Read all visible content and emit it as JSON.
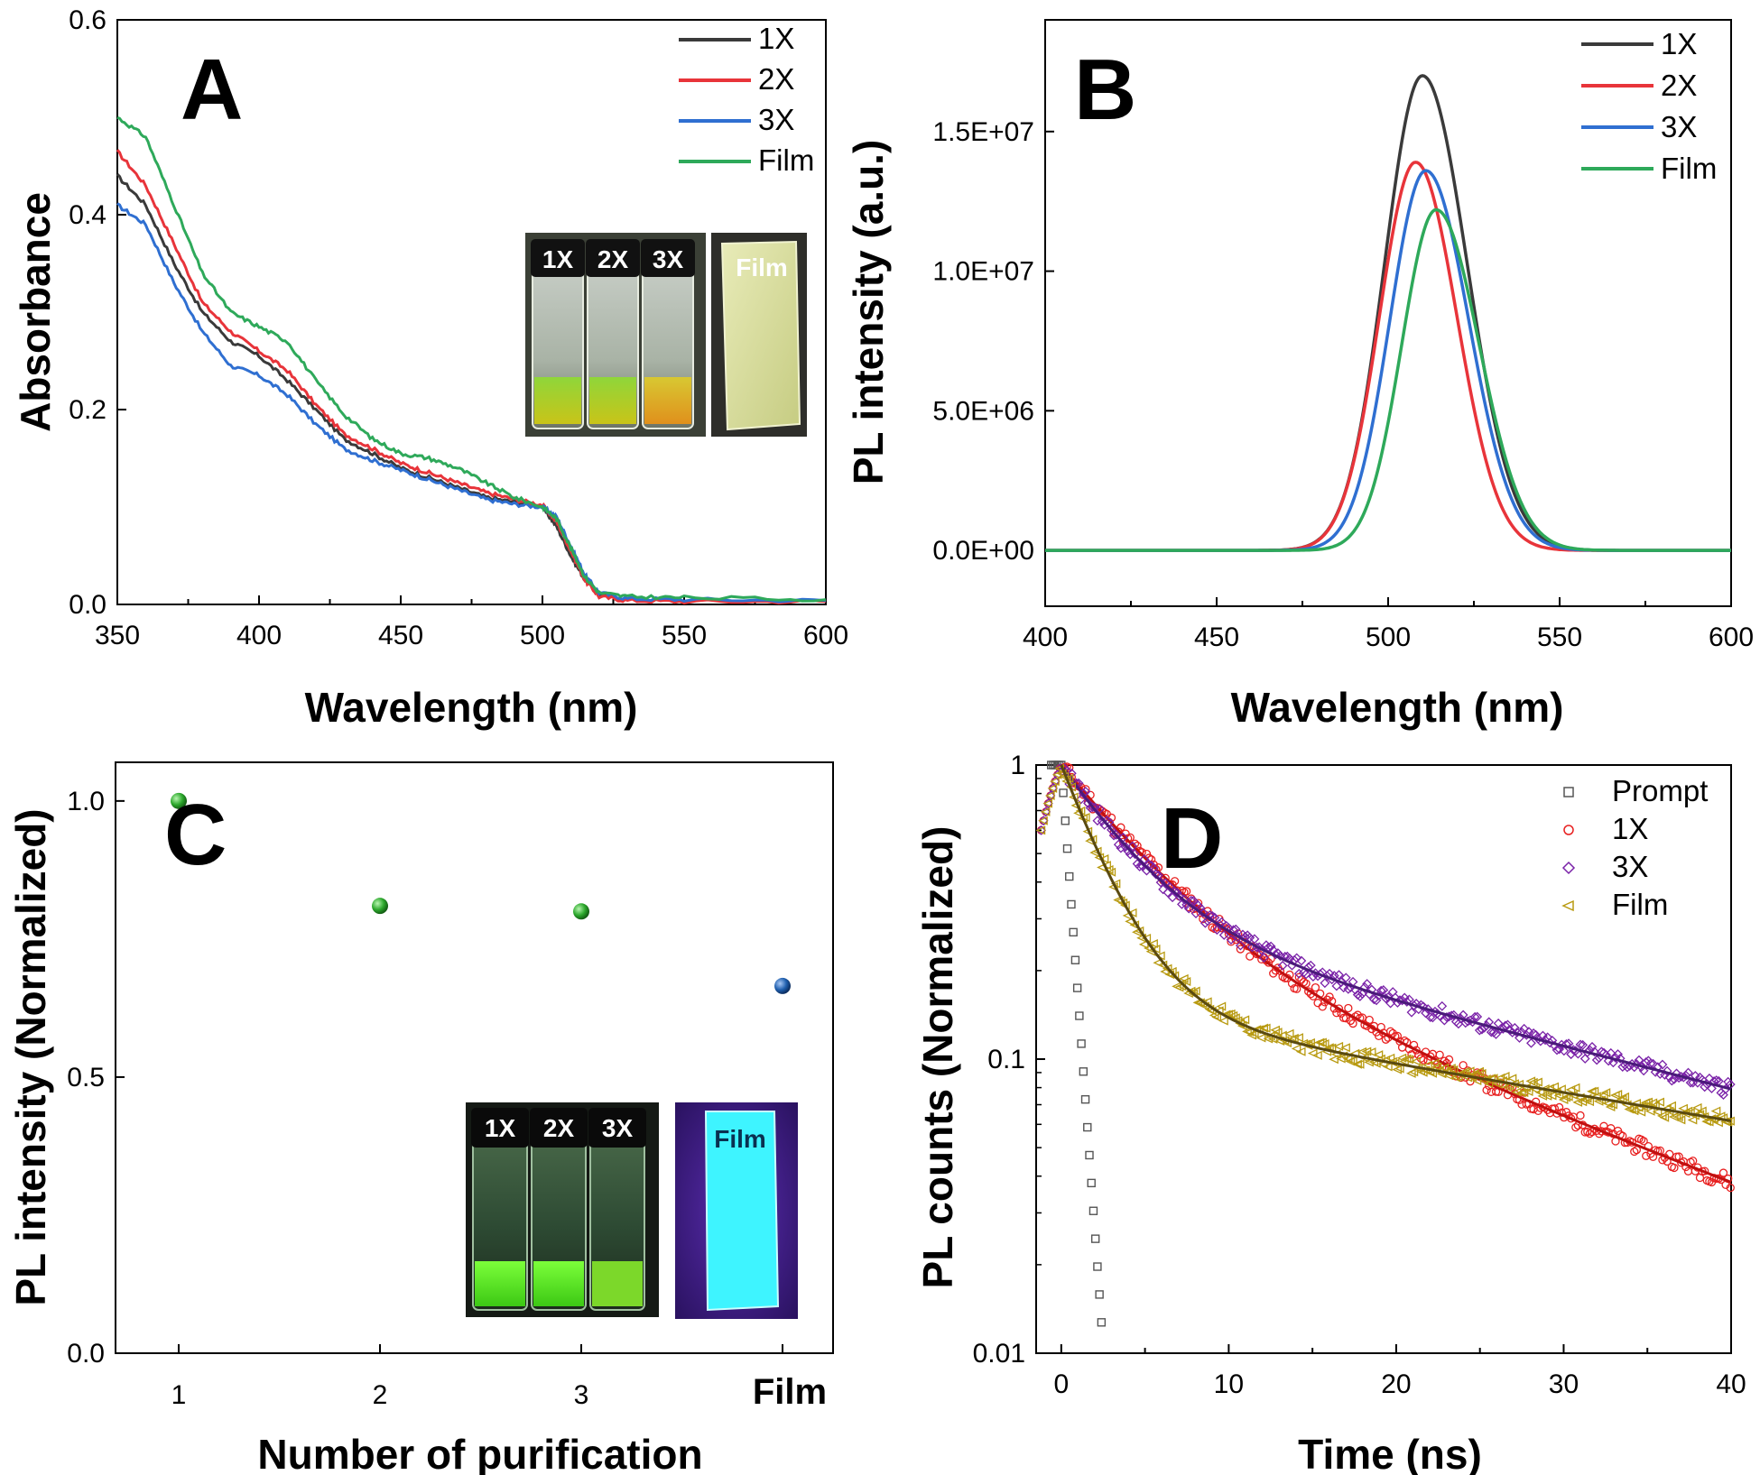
{
  "colors": {
    "1X": "#3a3a3a",
    "2X": "#e8343a",
    "3X": "#2f6fd1",
    "Film": "#2ea95a",
    "prompt": "#555555",
    "d1X": "#e82020",
    "d3X": "#7a22a8",
    "dFilm": "#b89a10",
    "dot_green": "#2ca82c",
    "dot_blue": "#1f5fae"
  },
  "chart_data": [
    {
      "id": "A",
      "type": "line",
      "panel_label": "A",
      "xlabel": "Wavelength (nm)",
      "ylabel": "Absorbance",
      "xlim": [
        350,
        600
      ],
      "ylim": [
        0,
        0.6
      ],
      "xticks": [
        350,
        400,
        450,
        500,
        550,
        600
      ],
      "yticks": [
        0.0,
        0.2,
        0.4,
        0.6
      ],
      "ytick_labels": [
        "0.0",
        "0.2",
        "0.4",
        "0.6"
      ],
      "legend": [
        "1X",
        "2X",
        "3X",
        "Film"
      ],
      "inset_labels": [
        "1X",
        "2X",
        "3X",
        "Film"
      ],
      "x": [
        350,
        360,
        370,
        380,
        390,
        400,
        410,
        420,
        430,
        440,
        450,
        460,
        470,
        480,
        490,
        500,
        505,
        510,
        515,
        520,
        530,
        550,
        600
      ],
      "series": [
        {
          "name": "1X",
          "values": [
            0.44,
            0.41,
            0.35,
            0.3,
            0.27,
            0.255,
            0.23,
            0.2,
            0.17,
            0.155,
            0.14,
            0.13,
            0.12,
            0.11,
            0.105,
            0.1,
            0.08,
            0.05,
            0.025,
            0.01,
            0.005,
            0.004,
            0.003
          ]
        },
        {
          "name": "2X",
          "values": [
            0.465,
            0.43,
            0.37,
            0.31,
            0.28,
            0.26,
            0.24,
            0.205,
            0.175,
            0.16,
            0.145,
            0.135,
            0.125,
            0.115,
            0.108,
            0.102,
            0.085,
            0.055,
            0.025,
            0.008,
            0.004,
            0.003,
            0.003
          ]
        },
        {
          "name": "3X",
          "values": [
            0.41,
            0.39,
            0.33,
            0.28,
            0.245,
            0.235,
            0.215,
            0.185,
            0.16,
            0.148,
            0.138,
            0.128,
            0.118,
            0.108,
            0.103,
            0.1,
            0.09,
            0.06,
            0.03,
            0.012,
            0.006,
            0.005,
            0.004
          ]
        },
        {
          "name": "Film",
          "values": [
            0.5,
            0.48,
            0.41,
            0.34,
            0.3,
            0.285,
            0.27,
            0.23,
            0.195,
            0.17,
            0.155,
            0.15,
            0.14,
            0.125,
            0.11,
            0.1,
            0.088,
            0.058,
            0.028,
            0.012,
            0.008,
            0.007,
            0.005
          ]
        }
      ]
    },
    {
      "id": "B",
      "type": "line",
      "panel_label": "B",
      "xlabel": "Wavelength (nm)",
      "ylabel": "PL intensity (a.u.)",
      "xlim": [
        400,
        600
      ],
      "ylim": [
        -2000000,
        19000000
      ],
      "xticks": [
        400,
        450,
        500,
        550,
        600
      ],
      "yticks": [
        0,
        5000000,
        10000000,
        15000000
      ],
      "ytick_labels": [
        "0.0E+00",
        "5.0E+06",
        "1.0E+07",
        "1.5E+07"
      ],
      "legend": [
        "1X",
        "2X",
        "3X",
        "Film"
      ],
      "series": [
        {
          "name": "1X",
          "peak_x": 510,
          "peak": 17000000,
          "width_left": 11,
          "width_right": 13
        },
        {
          "name": "2X",
          "peak_x": 508,
          "peak": 13900000,
          "width_left": 10.5,
          "width_right": 12
        },
        {
          "name": "3X",
          "peak_x": 511,
          "peak": 13600000,
          "width_left": 10.5,
          "width_right": 12.5
        },
        {
          "name": "Film",
          "peak_x": 514,
          "peak": 12200000,
          "width_left": 10,
          "width_right": 12.5
        }
      ]
    },
    {
      "id": "C",
      "type": "scatter",
      "panel_label": "C",
      "xlabel": "Number of purification",
      "ylabel": "PL intensity (Normalized)",
      "categories": [
        "1",
        "2",
        "3",
        "Film"
      ],
      "values": [
        1.0,
        0.81,
        0.8,
        0.665
      ],
      "ylim": [
        0,
        1.07
      ],
      "yticks": [
        0.0,
        0.5,
        1.0
      ],
      "ytick_labels": [
        "0.0",
        "0.5",
        "1.0"
      ],
      "inset_labels": [
        "1X",
        "2X",
        "3X",
        "Film"
      ]
    },
    {
      "id": "D",
      "type": "scatter",
      "panel_label": "D",
      "xlabel": "Time (ns)",
      "ylabel": "PL counts (Normalized)",
      "xlim": [
        -1.5,
        40
      ],
      "ylim": [
        0.01,
        1
      ],
      "yscale": "log",
      "xticks": [
        0,
        10,
        20,
        30,
        40
      ],
      "yticks": [
        0.01,
        0.1,
        1
      ],
      "ytick_labels": [
        "0.01",
        "0.1",
        "1"
      ],
      "legend": [
        "Prompt",
        "1X",
        "3X",
        "Film"
      ],
      "series": [
        {
          "name": "Prompt",
          "tau": 0.55,
          "x_end": 2.7
        },
        {
          "name": "1X",
          "a1": 0.72,
          "t1": 5.0,
          "a2": 0.28,
          "t2": 20.0
        },
        {
          "name": "3X",
          "a1": 0.7,
          "t1": 4.0,
          "a2": 0.3,
          "t2": 30.0
        },
        {
          "name": "Film",
          "a1": 0.85,
          "t1": 2.6,
          "a2": 0.15,
          "t2": 45.0
        }
      ]
    }
  ]
}
